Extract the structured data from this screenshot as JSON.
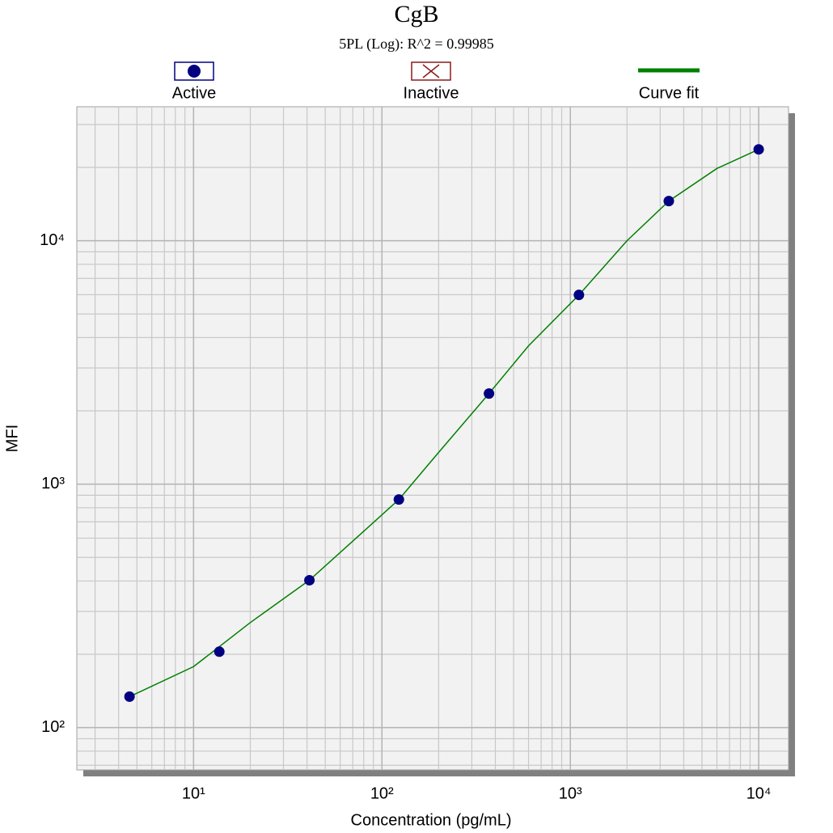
{
  "chart_data": {
    "type": "scatter",
    "title": "CgB",
    "subtitle": "5PL (Log): R^2 = 0.99985",
    "x_label": "Concentration (pg/mL)",
    "y_label": "MFI",
    "x_log": true,
    "y_log": true,
    "grid": true,
    "xlim": [
      2.4,
      14400
    ],
    "ylim": [
      67,
      35500
    ],
    "xticks": [
      {
        "value": 10,
        "label": "10¹"
      },
      {
        "value": 100,
        "label": "10²"
      },
      {
        "value": 1000,
        "label": "10³"
      },
      {
        "value": 10000,
        "label": "10⁴"
      }
    ],
    "yticks": [
      {
        "value": 100,
        "label": "10²"
      },
      {
        "value": 1000,
        "label": "10³"
      },
      {
        "value": 10000,
        "label": "10⁴"
      }
    ],
    "series": [
      {
        "name": "Active",
        "type": "scatter",
        "color": "#000080",
        "x": [
          4.57,
          13.7,
          41.2,
          123,
          370,
          1111,
          3333,
          10000
        ],
        "values": [
          134,
          205,
          403,
          865,
          2356,
          5987,
          14550,
          23720
        ]
      },
      {
        "name": "Inactive",
        "type": "scatter",
        "color": "#8b1a1a",
        "x": [],
        "values": []
      },
      {
        "name": "Curve fit",
        "type": "line",
        "color": "#008000",
        "x": [
          4.57,
          10,
          20,
          41.2,
          80,
          123,
          200,
          370,
          600,
          1111,
          2000,
          3333,
          6000,
          10000
        ],
        "values": [
          134,
          178,
          270,
          403,
          640,
          865,
          1350,
          2356,
          3700,
          5987,
          10000,
          14550,
          19800,
          23720
        ]
      }
    ]
  }
}
